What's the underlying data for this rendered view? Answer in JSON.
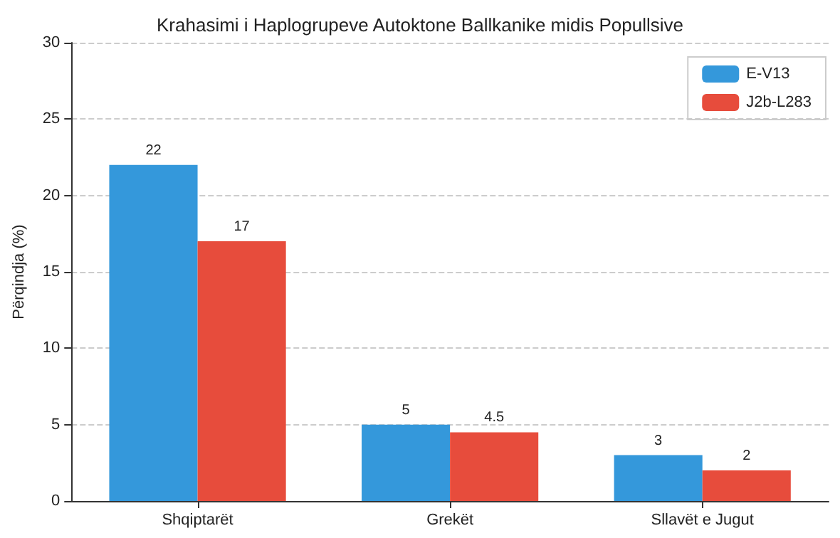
{
  "chart_data": {
    "type": "bar",
    "title": "Krahasimi i Haplogrupeve Autoktone Ballkanike midis Popullsive",
    "ylabel": "Përqindja (%)",
    "categories": [
      "Shqiptarët",
      "Grekët",
      "Sllavët e Jugut"
    ],
    "series": [
      {
        "name": "E-V13",
        "color": "#3498db",
        "values": [
          22,
          5,
          3
        ]
      },
      {
        "name": "J2b-L283",
        "color": "#e74c3c",
        "values": [
          17,
          4.5,
          2
        ]
      }
    ],
    "ylim": [
      0,
      30
    ],
    "yticks": [
      0,
      5,
      10,
      15,
      20,
      25,
      30
    ],
    "grid": "y",
    "legend": "top right",
    "data_labels": true
  }
}
